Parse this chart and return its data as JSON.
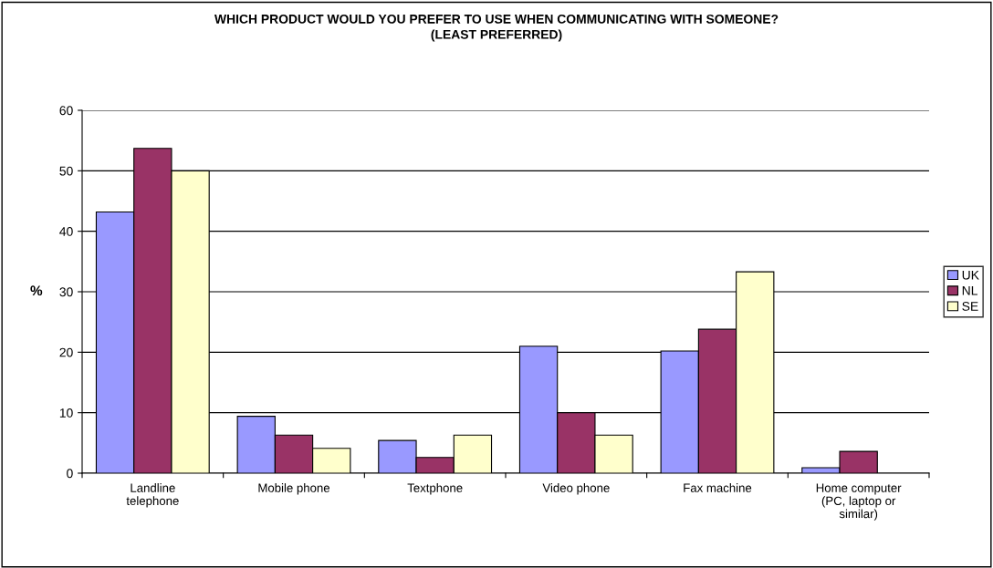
{
  "chart_data": {
    "type": "bar",
    "title": "WHICH PRODUCT WOULD YOU PREFER TO USE WHEN COMMUNICATING WITH SOMEONE?\n(LEAST PREFERRED)",
    "ylabel": "%",
    "categories": [
      "Landline\ntelephone",
      "Mobile phone",
      "Textphone",
      "Video phone",
      "Fax machine",
      "Home computer\n(PC, laptop or\nsimilar)"
    ],
    "series": [
      {
        "name": "UK",
        "color": "#9999ff",
        "values": [
          43.2,
          9.4,
          5.4,
          21.0,
          20.2,
          0.9
        ]
      },
      {
        "name": "NL",
        "color": "#993366",
        "values": [
          53.7,
          6.3,
          2.6,
          10.0,
          23.8,
          3.6
        ]
      },
      {
        "name": "SE",
        "color": "#ffffcc",
        "values": [
          50.0,
          4.1,
          6.3,
          6.3,
          33.3,
          null
        ]
      }
    ],
    "ylim": [
      0,
      60
    ],
    "yticks": [
      0,
      10,
      20,
      30,
      40,
      50,
      60
    ],
    "grid": "y",
    "legend": "right"
  }
}
